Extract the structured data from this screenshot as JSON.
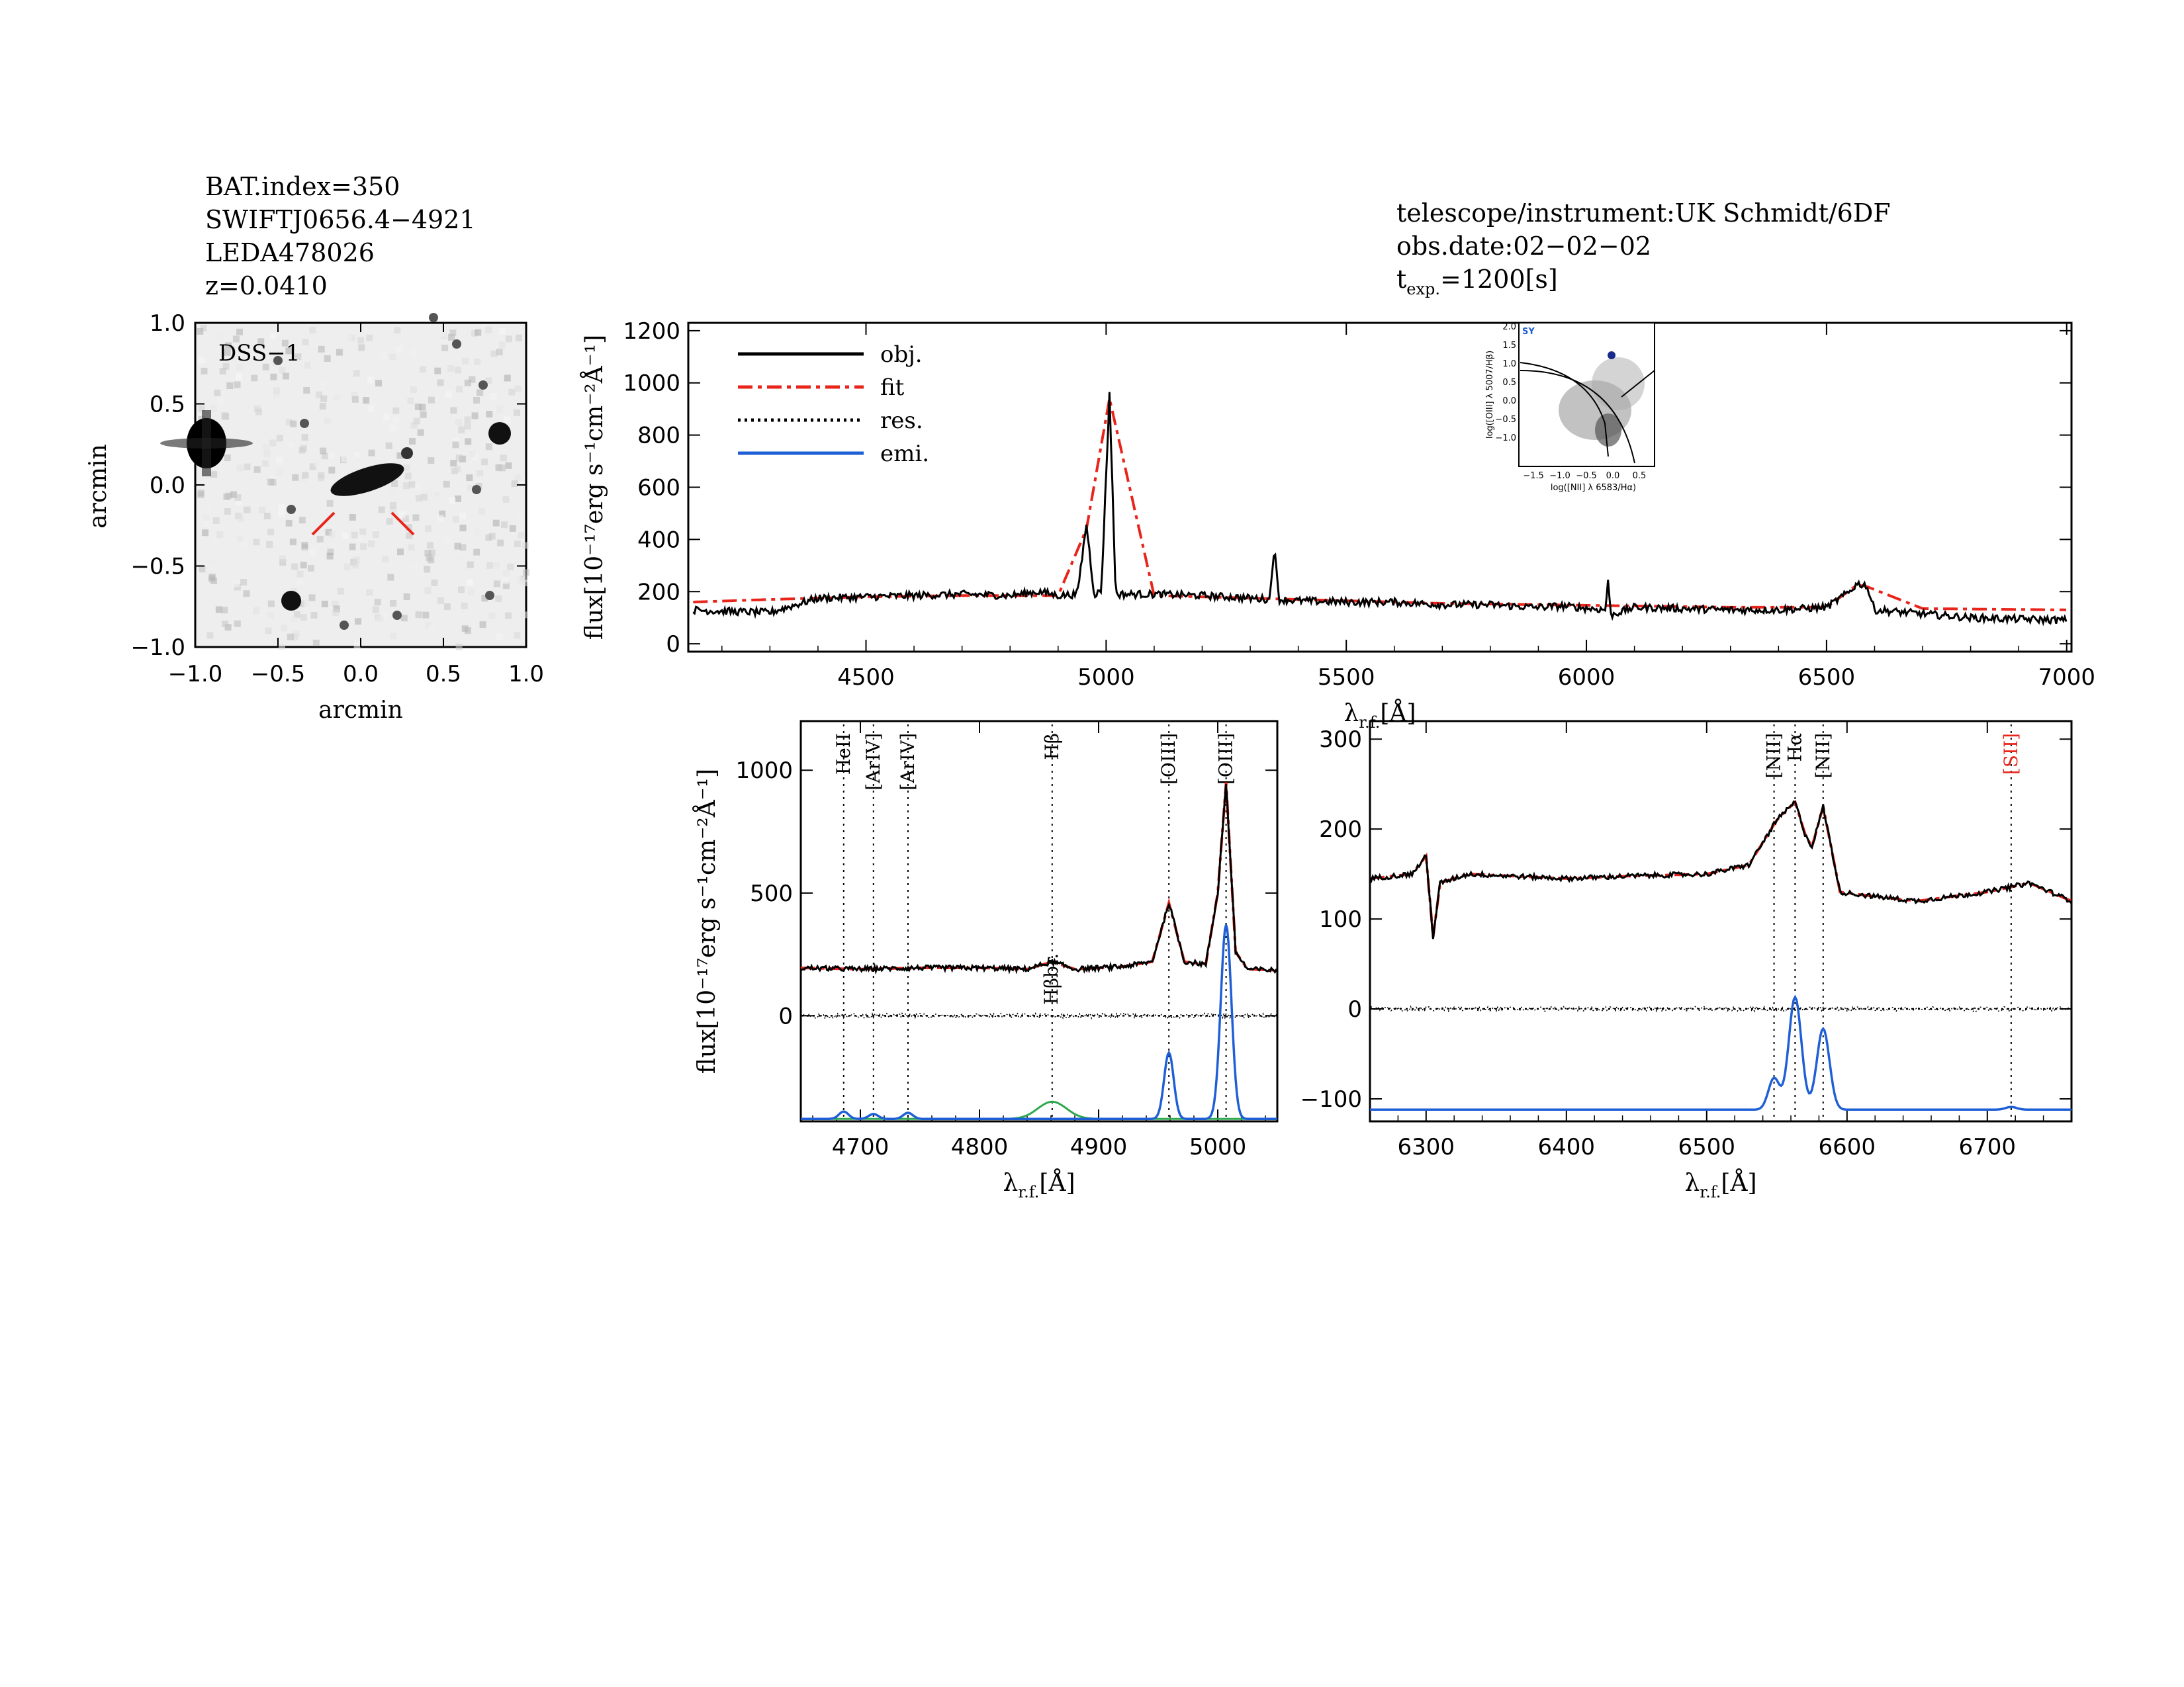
{
  "header": {
    "bat_index": "BAT.index=350",
    "swift_name": "SWIFTJ0656.4−4921",
    "counterpart": "LEDA478026",
    "redshift": "z=0.0410",
    "telescope": "telescope/instrument:UK Schmidt/6DF",
    "obs_date": "obs.date:02−02−02",
    "texp_main": "t",
    "texp_sub": "exp.",
    "texp_value": "=1200[s]"
  },
  "image_panel": {
    "label": "DSS−1",
    "xlabel": "arcmin",
    "ylabel": "arcmin",
    "xticks": [
      "−1.0",
      "−0.5",
      "0.0",
      "0.5",
      "1.0"
    ],
    "yticks": [
      "1.0",
      "0.5",
      "0.0",
      "−0.5",
      "−1.0"
    ],
    "marker_color": "#e8251b"
  },
  "legend": {
    "obj": "obj.",
    "fit": "fit",
    "res": "res.",
    "emi": "emi."
  },
  "colors": {
    "obj": "#000000",
    "fit": "#e8251b",
    "res": "#000000",
    "emi": "#1f5fd6",
    "broad": "#2fa84f"
  },
  "chart_data": [
    {
      "type": "line",
      "name": "full spectrum",
      "xlabel_main": "λ",
      "xlabel_sub": "r.f.",
      "xlabel_unit": "[Å]",
      "ylabel": "flux[10⁻¹⁷erg s⁻¹cm⁻²Å⁻¹]",
      "xlim": [
        4130,
        7010
      ],
      "ylim": [
        -30,
        1230
      ],
      "xticks": [
        4500,
        5000,
        5500,
        6000,
        6500,
        7000
      ],
      "yticks": [
        0,
        200,
        400,
        600,
        800,
        1000,
        1200
      ],
      "series": [
        {
          "name": "obj.",
          "x": [
            4140,
            4200,
            4300,
            4400,
            4500,
            4600,
            4700,
            4800,
            4860,
            4900,
            4940,
            4959,
            4975,
            4990,
            5007,
            5020,
            5100,
            5200,
            5300,
            5340,
            5350,
            5360,
            5400,
            5500,
            5600,
            5700,
            5800,
            5890,
            5950,
            6040,
            6045,
            6050,
            6100,
            6200,
            6300,
            6400,
            6500,
            6548,
            6563,
            6583,
            6600,
            6700,
            6800,
            6900,
            7000
          ],
          "y": [
            130,
            125,
            120,
            175,
            180,
            185,
            190,
            185,
            200,
            185,
            190,
            460,
            190,
            200,
            960,
            190,
            190,
            185,
            175,
            170,
            370,
            170,
            165,
            160,
            160,
            150,
            150,
            140,
            145,
            130,
            250,
            110,
            140,
            135,
            130,
            130,
            140,
            200,
            230,
            225,
            130,
            115,
            100,
            95,
            90
          ]
        },
        {
          "name": "fit",
          "x": [
            4140,
            4300,
            4500,
            4700,
            4900,
            4959,
            5007,
            5100,
            5300,
            5500,
            5700,
            5900,
            6100,
            6300,
            6500,
            6563,
            6583,
            6700,
            7000
          ],
          "y": [
            160,
            170,
            180,
            185,
            185,
            440,
            940,
            185,
            175,
            165,
            155,
            150,
            145,
            140,
            140,
            225,
            220,
            135,
            130
          ]
        }
      ]
    },
    {
      "type": "line",
      "name": "hbeta region",
      "xlabel_main": "λ",
      "xlabel_sub": "r.f.",
      "xlabel_unit": "[Å]",
      "ylabel": "flux[10⁻¹⁷erg s⁻¹cm⁻²Å⁻¹]",
      "xlim": [
        4650,
        5050
      ],
      "ylim": [
        -430,
        1200
      ],
      "xticks": [
        4700,
        4800,
        4900,
        5000
      ],
      "yticks": [
        0,
        500,
        1000
      ],
      "lines": [
        {
          "label": "HeII",
          "x": 4686
        },
        {
          "label": "[ArIV]",
          "x": 4711
        },
        {
          "label": "[ArIV]",
          "x": 4740
        },
        {
          "label": "Hβ",
          "x": 4861
        },
        {
          "label": "[OIII]",
          "x": 4959
        },
        {
          "label": "[OIII]",
          "x": 5007
        }
      ],
      "broad_label": "Hβbr.",
      "obj_x": [
        4650,
        4700,
        4750,
        4800,
        4840,
        4861,
        4880,
        4920,
        4945,
        4959,
        4972,
        4990,
        5000,
        5007,
        5015,
        5025,
        5050
      ],
      "obj_y": [
        195,
        190,
        195,
        195,
        190,
        220,
        190,
        200,
        220,
        460,
        220,
        210,
        500,
        950,
        260,
        190,
        185
      ],
      "emi": [
        {
          "center": 4686,
          "amp": 30,
          "sigma": 4
        },
        {
          "center": 4711,
          "amp": 20,
          "sigma": 4
        },
        {
          "center": 4740,
          "amp": 25,
          "sigma": 4
        },
        {
          "center": 4959,
          "amp": 270,
          "sigma": 4
        },
        {
          "center": 5007,
          "amp": 790,
          "sigma": 4.5
        }
      ],
      "broad": {
        "center": 4861,
        "amp": 70,
        "sigma": 12
      },
      "emi_baseline": -420
    },
    {
      "type": "line",
      "name": "halpha region",
      "xlabel_main": "λ",
      "xlabel_sub": "r.f.",
      "xlabel_unit": "[Å]",
      "xlim": [
        6260,
        6760
      ],
      "ylim": [
        -125,
        320
      ],
      "xticks": [
        6300,
        6400,
        6500,
        6600,
        6700
      ],
      "yticks": [
        -100,
        0,
        100,
        200,
        300
      ],
      "lines": [
        {
          "label": "[NII]",
          "x": 6548,
          "color": "#000000"
        },
        {
          "label": "Hα",
          "x": 6563,
          "color": "#000000"
        },
        {
          "label": "[NII]",
          "x": 6583,
          "color": "#000000"
        },
        {
          "label": "[SII]",
          "x": 6717,
          "color": "#e8251b"
        }
      ],
      "obj_x": [
        6260,
        6290,
        6300,
        6305,
        6310,
        6330,
        6400,
        6450,
        6500,
        6530,
        6550,
        6563,
        6570,
        6575,
        6583,
        6595,
        6620,
        6650,
        6700,
        6730,
        6760
      ],
      "obj_y": [
        145,
        150,
        170,
        80,
        140,
        150,
        145,
        148,
        150,
        160,
        210,
        230,
        195,
        180,
        225,
        130,
        125,
        120,
        130,
        140,
        120
      ],
      "emi": [
        {
          "center": 6548,
          "amp": 35,
          "sigma": 4
        },
        {
          "center": 6563,
          "amp": 125,
          "sigma": 4.5
        },
        {
          "center": 6583,
          "amp": 90,
          "sigma": 4.5
        },
        {
          "center": 6717,
          "amp": 3,
          "sigma": 4
        }
      ],
      "emi_baseline": -112
    }
  ],
  "bpt_inset": {
    "tag": "SY",
    "xlabel": "log([NII] λ 6583/Hα)",
    "ylabel": "log([OIII] λ 5007/Hβ)",
    "xticks": [
      "−1.5",
      "−1.0",
      "−0.5",
      "0.0",
      "0.5"
    ],
    "yticks": [
      "2.0",
      "1.5",
      "1.0",
      "0.5",
      "0.0",
      "−0.5",
      "−1.0"
    ],
    "point": {
      "x": -0.1,
      "y": 1.25
    }
  }
}
